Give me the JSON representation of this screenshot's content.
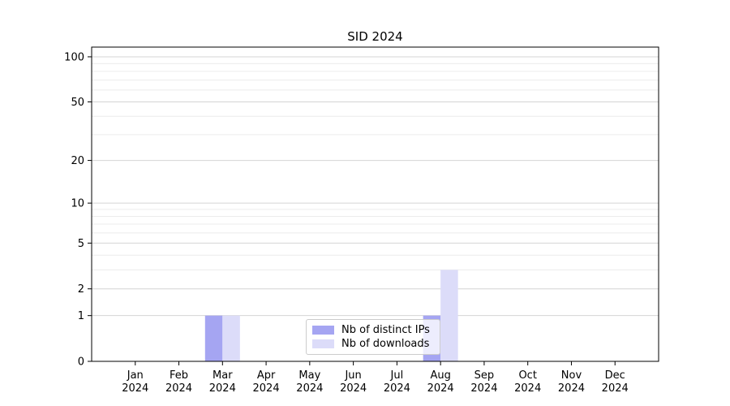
{
  "chart_data": {
    "type": "bar",
    "title": "SID 2024",
    "categories": [
      "Jan 2024",
      "Feb 2024",
      "Mar 2024",
      "Apr 2024",
      "May 2024",
      "Jun 2024",
      "Jul 2024",
      "Aug 2024",
      "Sep 2024",
      "Oct 2024",
      "Nov 2024",
      "Dec 2024"
    ],
    "series": [
      {
        "name": "Nb of distinct IPs",
        "color": "#a5a5f2",
        "values": [
          0,
          0,
          1,
          0,
          0,
          0,
          0,
          1,
          0,
          0,
          0,
          0
        ]
      },
      {
        "name": "Nb of downloads",
        "color": "#dcdcf9",
        "values": [
          0,
          0,
          1,
          0,
          0,
          0,
          0,
          3,
          0,
          0,
          0,
          0
        ]
      }
    ],
    "y_axis": {
      "scale": "log1p",
      "min": 0,
      "max": 116,
      "major_ticks": [
        0,
        1,
        2,
        5,
        10,
        20,
        50,
        100
      ],
      "minor_gridlines": [
        3,
        4,
        6,
        7,
        8,
        9,
        30,
        40,
        60,
        70,
        80,
        90
      ]
    },
    "x_axis": {
      "tick_label_lines": 2
    },
    "grid": "horizontal",
    "legend": {
      "position": "lower-center"
    }
  },
  "colors": {
    "background": "#ffffff",
    "grid_major": "#d4d4d4",
    "grid_minor": "#ececec",
    "spine": "#000000",
    "tick": "#000000",
    "text": "#000000",
    "legend_border": "#cccccc"
  }
}
